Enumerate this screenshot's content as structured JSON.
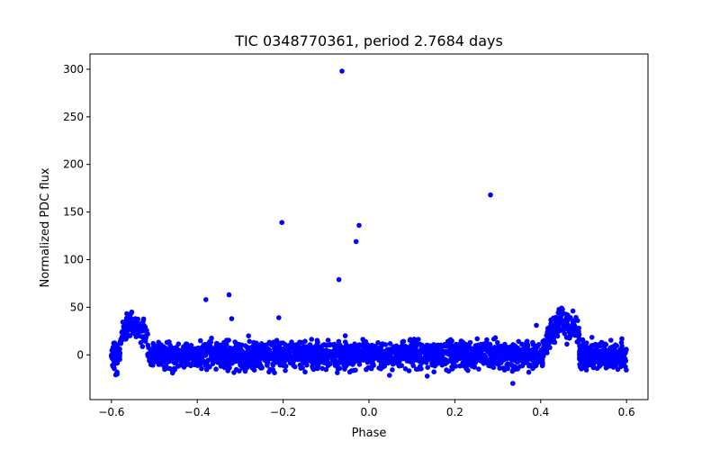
{
  "chart_data": {
    "type": "scatter",
    "title": "TIC 0348770361, period 2.7684 days",
    "xlabel": "Phase",
    "ylabel": "Normalized PDC flux",
    "xlim": [
      -0.65,
      0.65
    ],
    "ylim": [
      -47,
      316
    ],
    "xticks": [
      -0.6,
      -0.4,
      -0.2,
      0.0,
      0.2,
      0.4,
      0.6
    ],
    "xtick_labels": [
      "−0.6",
      "−0.4",
      "−0.2",
      "0.0",
      "0.2",
      "0.4",
      "0.6"
    ],
    "yticks": [
      0,
      50,
      100,
      150,
      200,
      250,
      300
    ],
    "ytick_labels": [
      "0",
      "50",
      "100",
      "150",
      "200",
      "250",
      "300"
    ],
    "grid": false,
    "marker_color": "#0000ff",
    "series": [
      {
        "name": "flux",
        "phase_range": [
          -0.6,
          0.6
        ],
        "baseline_flux": 0,
        "scatter_sigma": 7,
        "eclipse_bumps": [
          {
            "phase_start": -0.58,
            "phase_peak": -0.56,
            "phase_end": -0.515,
            "peak_flux": 45
          },
          {
            "phase_start": 0.405,
            "phase_peak": 0.445,
            "phase_end": 0.49,
            "peak_flux": 45
          }
        ],
        "outliers": [
          {
            "x": -0.063,
            "y": 298
          },
          {
            "x": 0.283,
            "y": 168
          },
          {
            "x": -0.203,
            "y": 139
          },
          {
            "x": -0.023,
            "y": 136
          },
          {
            "x": -0.03,
            "y": 119
          },
          {
            "x": -0.07,
            "y": 79
          },
          {
            "x": -0.326,
            "y": 63
          },
          {
            "x": -0.38,
            "y": 58
          },
          {
            "x": -0.21,
            "y": 39
          },
          {
            "x": -0.32,
            "y": 38
          },
          {
            "x": 0.39,
            "y": 31
          },
          {
            "x": -0.59,
            "y": -21
          },
          {
            "x": 0.335,
            "y": -30
          }
        ]
      }
    ]
  }
}
